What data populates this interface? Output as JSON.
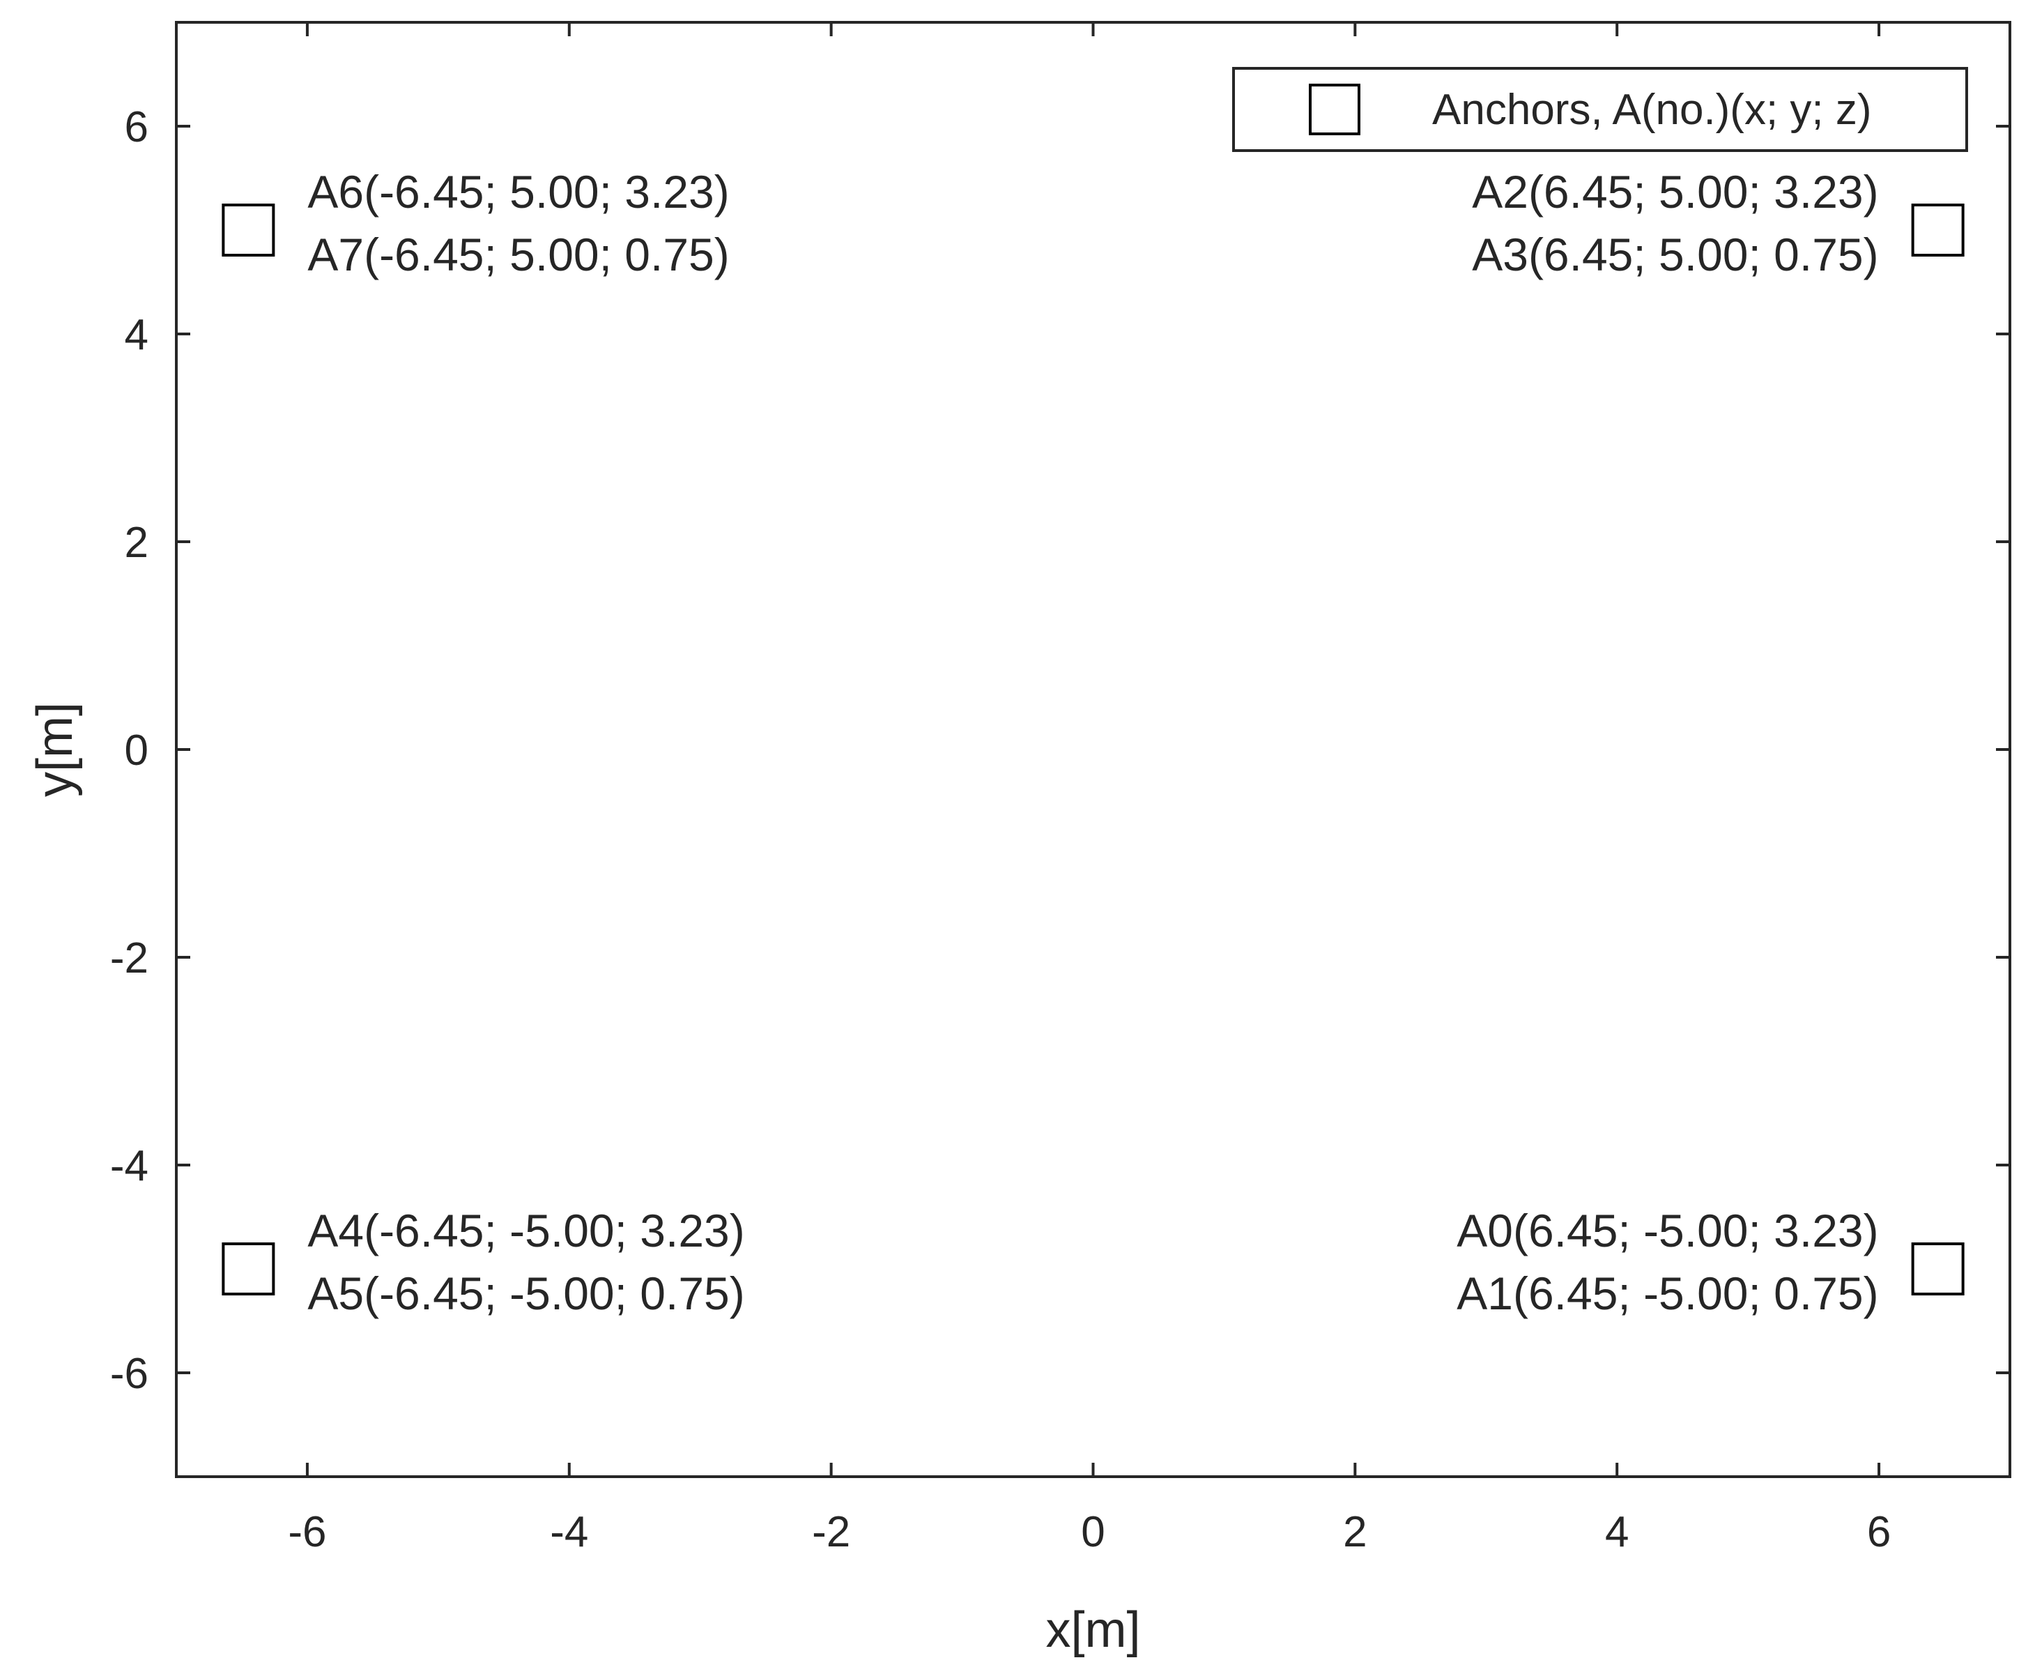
{
  "chart_data": {
    "type": "scatter",
    "title": "",
    "xlabel": "x[m]",
    "ylabel": "y[m]",
    "xlim": [
      -7,
      7
    ],
    "ylim": [
      -7,
      7
    ],
    "xticks": [
      -6,
      -4,
      -2,
      0,
      2,
      4,
      6
    ],
    "yticks": [
      -6,
      -4,
      -2,
      0,
      2,
      4,
      6
    ],
    "xtick_labels": [
      "-6",
      "-4",
      "-2",
      "0",
      "2",
      "4",
      "6"
    ],
    "ytick_labels": [
      "-6",
      "-4",
      "-2",
      "0",
      "2",
      "4",
      "6"
    ],
    "grid": false,
    "legend": {
      "position": "top-right",
      "entries": [
        {
          "label": "Anchors, A(no.)(x; y; z)",
          "marker": "square"
        }
      ]
    },
    "series": [
      {
        "name": "Anchors, A(no.)(x; y; z)",
        "marker": "square",
        "color": "#000000",
        "points": [
          {
            "x": -6.45,
            "y": 5.0
          },
          {
            "x": 6.45,
            "y": 5.0
          },
          {
            "x": -6.45,
            "y": -5.0
          },
          {
            "x": 6.45,
            "y": -5.0
          }
        ]
      }
    ],
    "annotations": [
      {
        "lines": [
          "A6(-6.45; 5.00; 3.23)",
          "A7(-6.45; 5.00; 0.75)"
        ],
        "x": -6.45,
        "y": 5.0,
        "align": "left"
      },
      {
        "lines": [
          "A2(6.45; 5.00; 3.23)",
          "A3(6.45; 5.00; 0.75)"
        ],
        "x": 6.45,
        "y": 5.0,
        "align": "right"
      },
      {
        "lines": [
          "A4(-6.45; -5.00; 3.23)",
          "A5(-6.45; -5.00; 0.75)"
        ],
        "x": -6.45,
        "y": -5.0,
        "align": "left"
      },
      {
        "lines": [
          "A0(6.45; -5.00; 3.23)",
          "A1(6.45; -5.00; 0.75)"
        ],
        "x": 6.45,
        "y": -5.0,
        "align": "right"
      }
    ]
  }
}
